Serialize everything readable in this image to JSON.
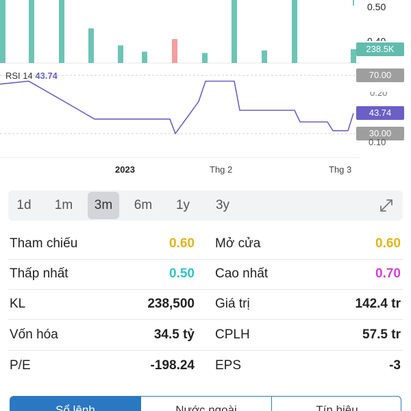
{
  "chart": {
    "price_axis_labels": [
      "0.50",
      "0.40"
    ],
    "volume_badge": "238.5K",
    "rsi": {
      "label": "RSI 14",
      "value": "43.74",
      "levels": [
        "70.00",
        "30.00"
      ],
      "current_badge": "43.74",
      "partial_axis_label": "0.10"
    },
    "time_labels": [
      "2023",
      "Thg 2",
      "Thg 3"
    ],
    "colors": {
      "up": "#6cc4b4",
      "down": "#f29ea0",
      "rsi_line": "#6b5fc7",
      "badge_gray": "#9e9e9e",
      "volume_badge": "#62bcae"
    }
  },
  "chart_data": {
    "type": "bar",
    "series": [
      {
        "values": [
          1,
          1,
          1,
          0.55,
          0.28,
          0.18,
          0.38,
          0.16,
          1,
          0.2,
          1,
          0.22
        ]
      },
      {
        "name": "RSI 14",
        "values": [
          64,
          66,
          52,
          40,
          40,
          40,
          40,
          30,
          52,
          66,
          66,
          46,
          46,
          38,
          38,
          32,
          32,
          44
        ]
      }
    ]
  },
  "range_bar": {
    "options": [
      "1d",
      "1m",
      "3m",
      "6m",
      "1y",
      "3y"
    ],
    "active": "3m"
  },
  "stats": [
    {
      "left_label": "Tham chiếu",
      "left_value": "0.60",
      "left_color": "#e2b41a",
      "right_label": "Mở cửa",
      "right_value": "0.60",
      "right_color": "#e2b41a"
    },
    {
      "left_label": "Thấp nhất",
      "left_value": "0.50",
      "left_color": "#2ec4c9",
      "right_label": "Cao nhất",
      "right_value": "0.70",
      "right_color": "#d63fd6"
    },
    {
      "left_label": "KL",
      "left_value": "238,500",
      "left_color": "#222222",
      "right_label": "Giá trị",
      "right_value": "142.4 tr",
      "right_color": "#222222"
    },
    {
      "left_label": "Vốn hóa",
      "left_value": "34.5 tỷ",
      "left_color": "#222222",
      "right_label": "CPLH",
      "right_value": "57.5 tr",
      "right_color": "#222222"
    },
    {
      "left_label": "P/E",
      "left_value": "-198.24",
      "left_color": "#222222",
      "right_label": "EPS",
      "right_value": "-3",
      "right_color": "#222222"
    }
  ],
  "bottom_tabs": {
    "items": [
      "Sổ lệnh",
      "Nước ngoài",
      "Tín hiệu"
    ],
    "active": "Sổ lệnh"
  }
}
